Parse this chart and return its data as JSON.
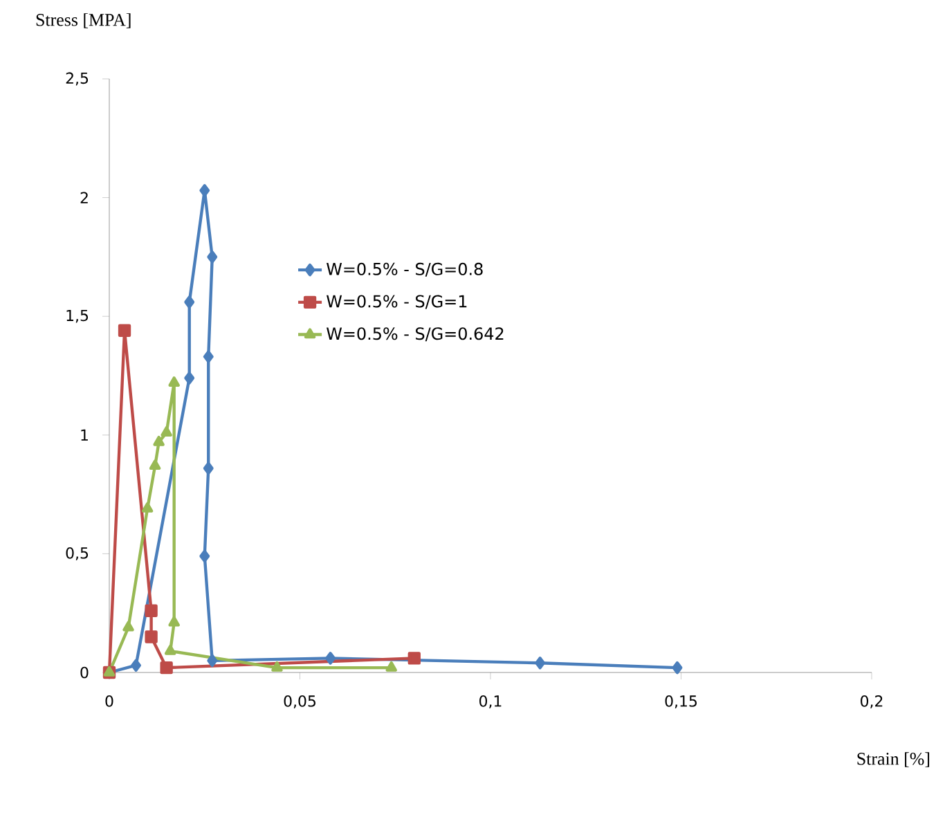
{
  "chart_data": {
    "type": "line",
    "xlabel": "Strain [%]",
    "ylabel": "Stress [MPA]",
    "xlim": [
      0,
      0.2
    ],
    "ylim": [
      0,
      2.5
    ],
    "xticks": [
      0,
      {
        "value": 0.05,
        "label": "0,05"
      },
      {
        "value": 0.1,
        "label": "0,1"
      },
      {
        "value": 0.15,
        "label": "0,15"
      },
      {
        "value": 0.2,
        "label": "0,2"
      }
    ],
    "yticks": [
      0,
      {
        "value": 0.5,
        "label": "0,5"
      },
      1,
      {
        "value": 1.5,
        "label": "1,5"
      },
      2,
      {
        "value": 2.5,
        "label": "2,5"
      }
    ],
    "grid": false,
    "legend": "top left",
    "line_style": "solid",
    "series": [
      {
        "name": "W=0.5% - S/G=0.8",
        "color": "#4a7ebb",
        "marker": "diamond",
        "x": [
          0,
          0.007,
          0.021,
          0.021,
          0.025,
          0.027,
          0.026,
          0.026,
          0.025,
          0.027,
          0.058,
          0.113,
          0.149
        ],
        "values": [
          0,
          0.03,
          1.24,
          1.56,
          2.03,
          1.75,
          1.33,
          0.86,
          0.49,
          0.05,
          0.06,
          0.04,
          0.02
        ]
      },
      {
        "name": "W=0.5% - S/G=1",
        "color": "#be4b48",
        "marker": "square",
        "x": [
          0,
          0.004,
          0.011,
          0.011,
          0.015,
          0.08
        ],
        "values": [
          0,
          1.44,
          0.26,
          0.15,
          0.02,
          0.06
        ]
      },
      {
        "name": "W=0.5% - S/G=0.642",
        "color": "#98b954",
        "marker": "triangle",
        "x": [
          0,
          0.005,
          0.01,
          0.012,
          0.013,
          0.015,
          0.017,
          0.017,
          0.016,
          0.044,
          0.074
        ],
        "values": [
          0,
          0.19,
          0.69,
          0.87,
          0.97,
          1.01,
          1.22,
          0.21,
          0.09,
          0.02,
          0.02
        ]
      }
    ]
  }
}
